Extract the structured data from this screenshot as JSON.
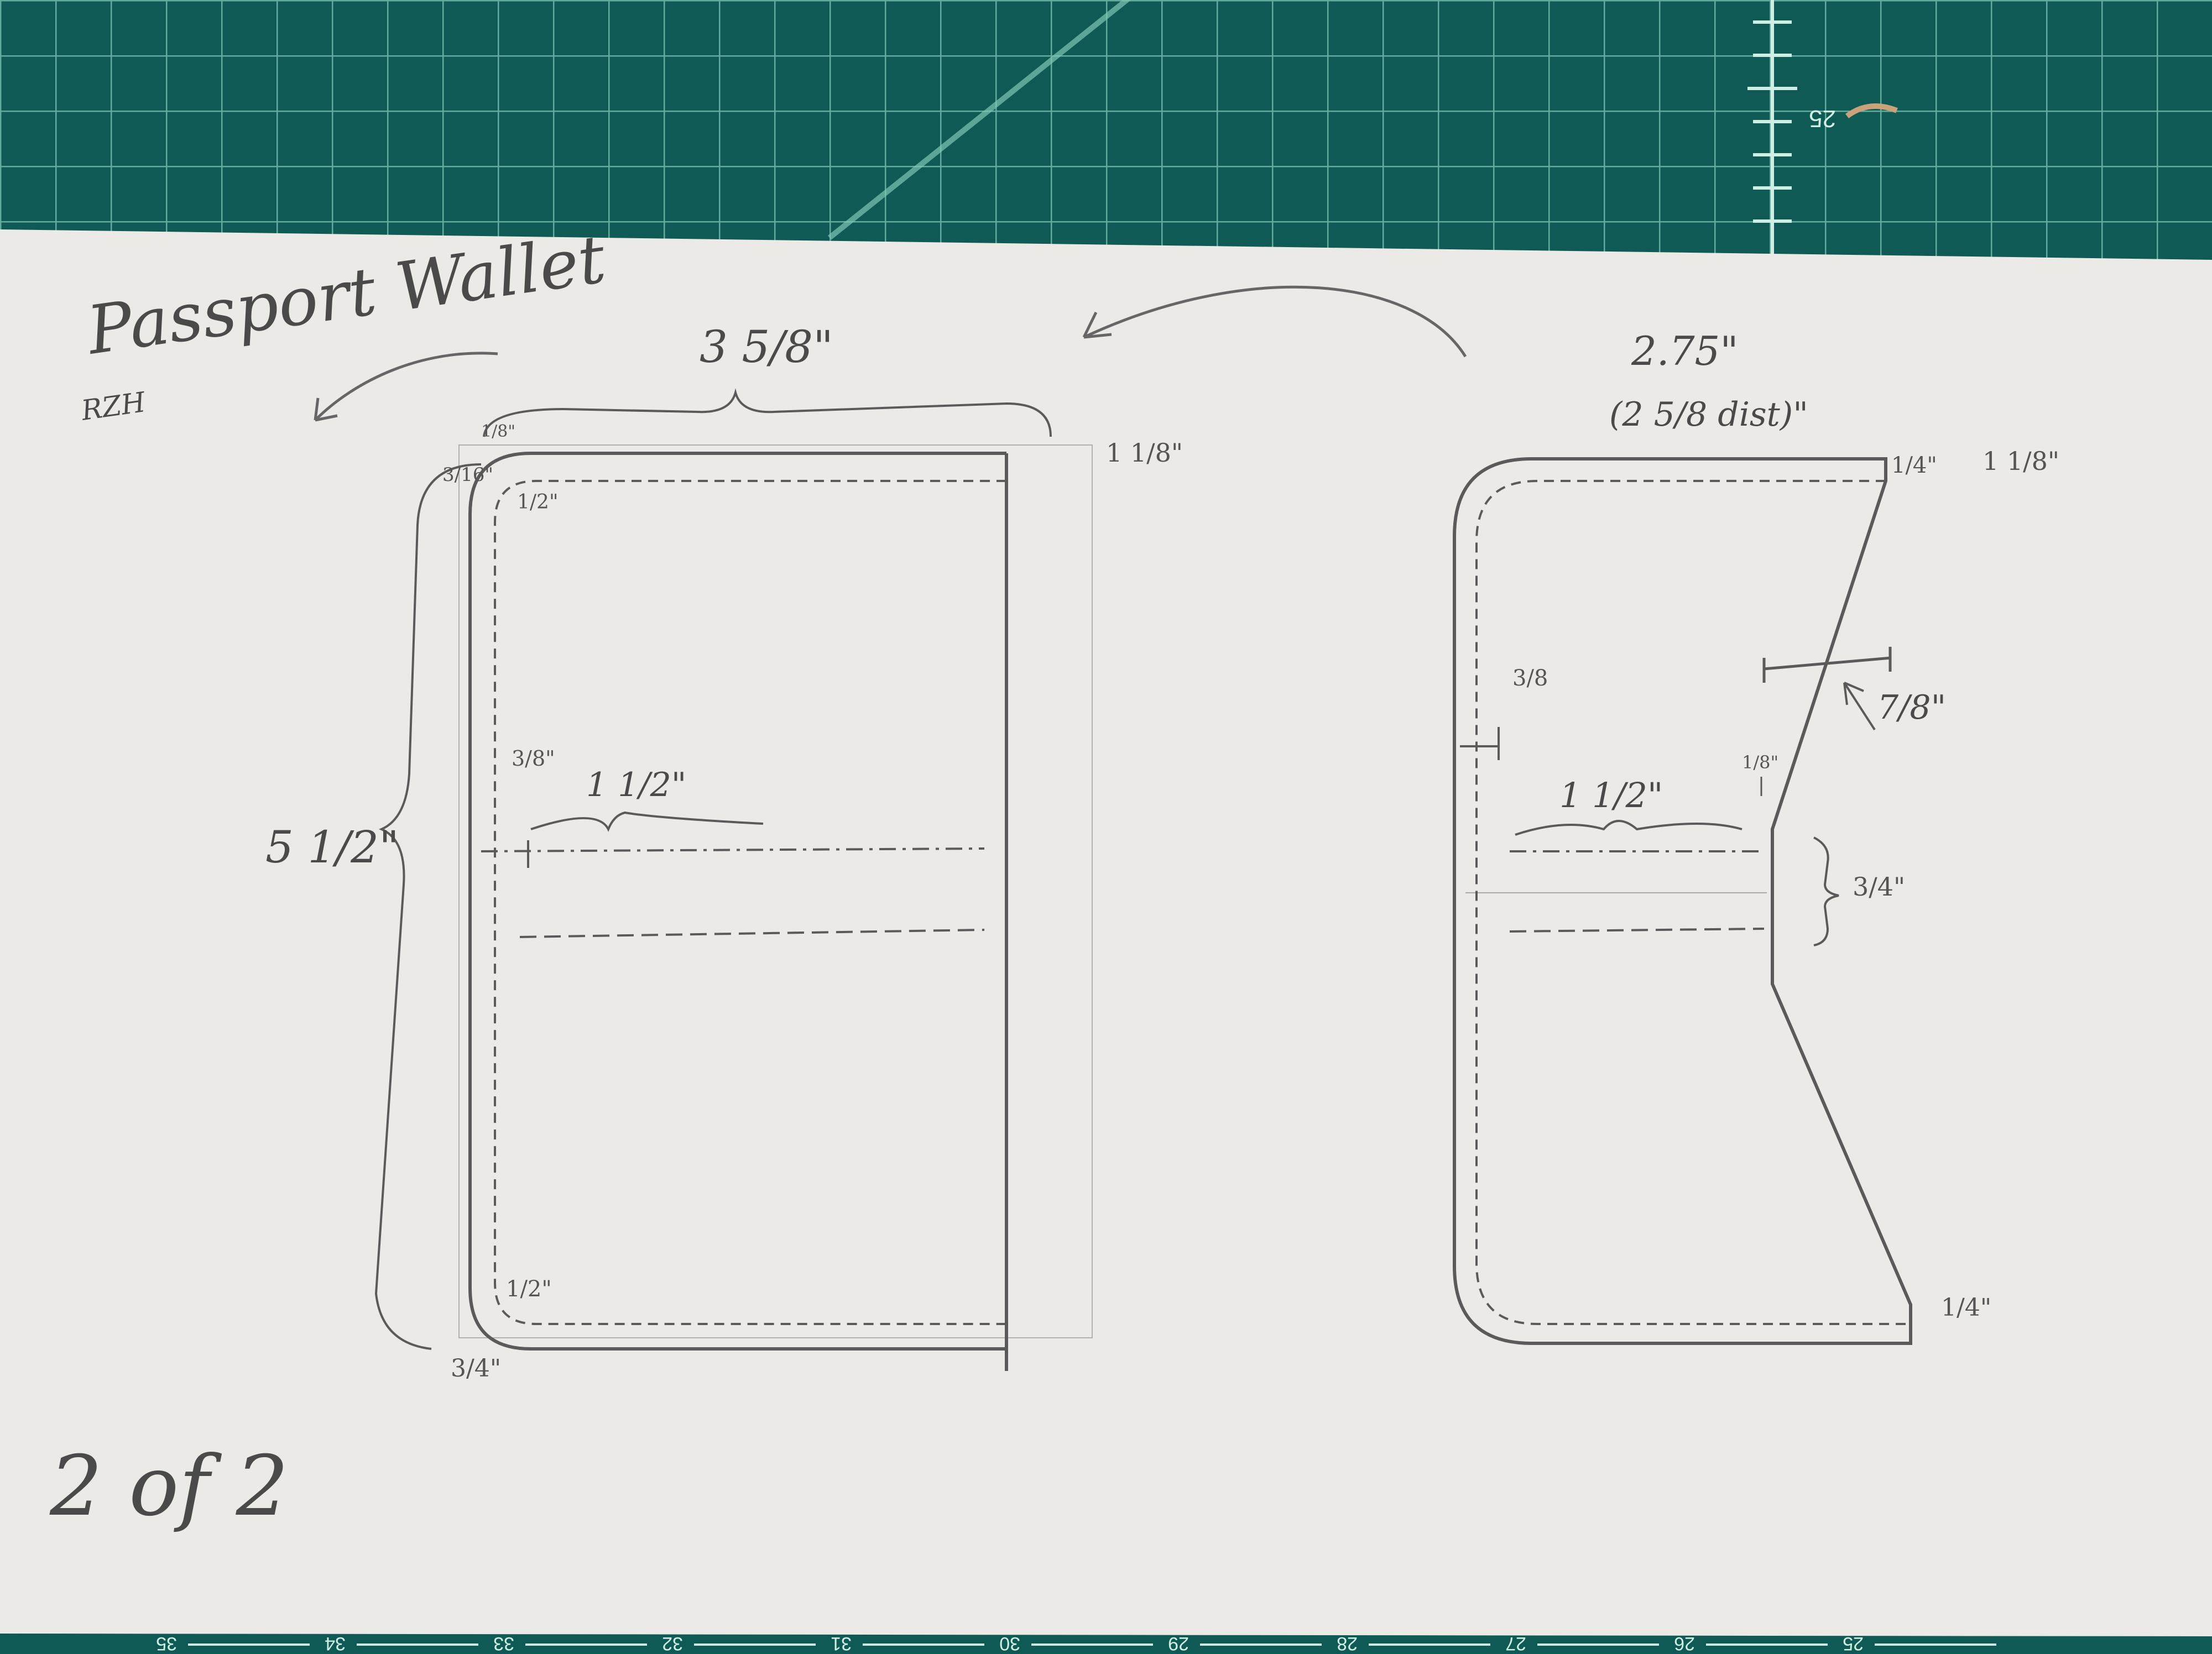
{
  "colors": {
    "mat": "#0f5a55",
    "mat_grid": "#7fc6b5",
    "paper": "#eceae6",
    "pencil": "#5a5a5a"
  },
  "title": "Passport Wallet",
  "title_sub": "RZH",
  "page_label": "2 of 2",
  "mat": {
    "ruler_numbers_top": [
      "25"
    ],
    "ruler_numbers_bottom": [
      "35",
      "34",
      "33",
      "32",
      "31",
      "30",
      "29",
      "28",
      "27",
      "26",
      "25"
    ]
  },
  "left_panel": {
    "width_label": "3 5/8\"",
    "height_label": "5 1/2\"",
    "margin_top_right": "1 1/8\"",
    "corner_top_a": "1/8\"",
    "corner_top_b": "3/16\"",
    "corner_top_c": "1/2\"",
    "pocket_offset": "3/8\"",
    "pocket_width": "1 1/2\"",
    "corner_bottom_a": "1/2\"",
    "corner_bottom_b": "3/4\""
  },
  "right_panel": {
    "width_label": "2.75\"",
    "width_alt": "(2 5/8 dist)\"",
    "top_right_a": "1/4\"",
    "top_right_b": "1 1/8\"",
    "left_margin": "3/8",
    "taper": "7/8\"",
    "step": "1/8\"",
    "pocket_width": "1 1/2\"",
    "pocket_height": "3/4\"",
    "bottom_right": "1/4\""
  }
}
